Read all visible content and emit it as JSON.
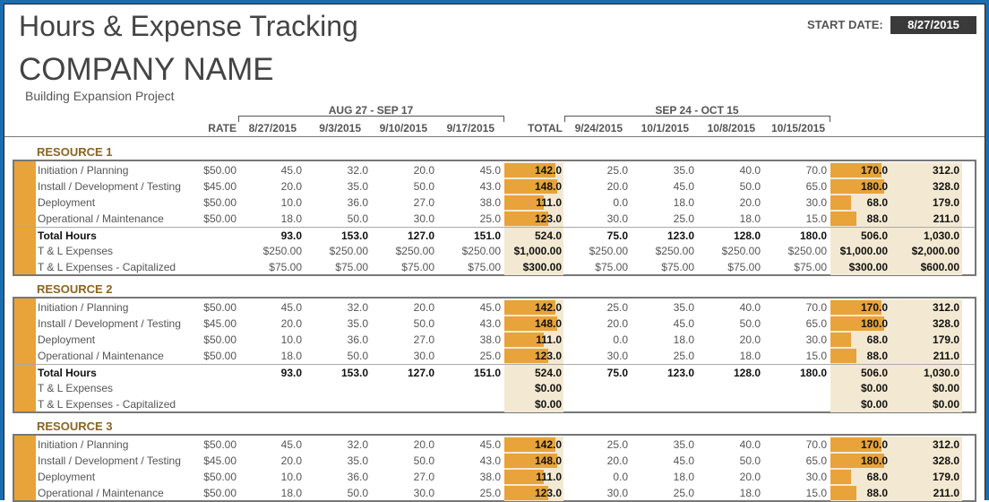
{
  "title": "Hours & Expense Tracking",
  "company": "COMPANY NAME",
  "project": "Building Expansion Project",
  "start_date": {
    "label": "START DATE:",
    "value": "8/27/2015"
  },
  "periods": [
    "AUG 27 - SEP 17",
    "SEP 24 - OCT 15"
  ],
  "headers": {
    "rate": "RATE",
    "weeks1": [
      "8/27/2015",
      "9/3/2015",
      "9/10/2015",
      "9/17/2015"
    ],
    "total": "TOTAL",
    "weeks2": [
      "9/24/2015",
      "10/1/2015",
      "10/8/2015",
      "10/15/2015"
    ]
  },
  "colors": {
    "accent": "#e8a33a",
    "shade": "#f3e9d2",
    "frame": "#1b6db0"
  },
  "resources": [
    {
      "name": "RESOURCE 1",
      "rows": [
        {
          "label": "Initiation / Planning",
          "rate": "$50.00",
          "w1": [
            "45.0",
            "32.0",
            "20.0",
            "45.0"
          ],
          "t1": "142.0",
          "w2": [
            "25.0",
            "35.0",
            "40.0",
            "70.0"
          ],
          "t2": "170.0",
          "grand": "312.0",
          "bar1": 142,
          "bar2": 170
        },
        {
          "label": "Install / Development / Testing",
          "rate": "$45.00",
          "w1": [
            "20.0",
            "35.0",
            "50.0",
            "43.0"
          ],
          "t1": "148.0",
          "w2": [
            "20.0",
            "45.0",
            "50.0",
            "65.0"
          ],
          "t2": "180.0",
          "grand": "328.0",
          "bar1": 148,
          "bar2": 180
        },
        {
          "label": "Deployment",
          "rate": "$50.00",
          "w1": [
            "10.0",
            "36.0",
            "27.0",
            "38.0"
          ],
          "t1": "111.0",
          "w2": [
            "0.0",
            "18.0",
            "20.0",
            "30.0"
          ],
          "t2": "68.0",
          "grand": "179.0",
          "bar1": 111,
          "bar2": 68
        },
        {
          "label": "Operational / Maintenance",
          "rate": "$50.00",
          "w1": [
            "18.0",
            "50.0",
            "30.0",
            "25.0"
          ],
          "t1": "123.0",
          "w2": [
            "30.0",
            "25.0",
            "18.0",
            "15.0"
          ],
          "t2": "88.0",
          "grand": "211.0",
          "bar1": 123,
          "bar2": 88
        },
        {
          "kind": "total",
          "label": "Total Hours",
          "rate": "",
          "w1": [
            "93.0",
            "153.0",
            "127.0",
            "151.0"
          ],
          "t1": "524.0",
          "w2": [
            "75.0",
            "123.0",
            "128.0",
            "180.0"
          ],
          "t2": "506.0",
          "grand": "1,030.0"
        },
        {
          "kind": "exp",
          "label": "T & L Expenses",
          "rate": "",
          "w1": [
            "$250.00",
            "$250.00",
            "$250.00",
            "$250.00"
          ],
          "t1": "$1,000.00",
          "w2": [
            "$250.00",
            "$250.00",
            "$250.00",
            "$250.00"
          ],
          "t2": "$1,000.00",
          "grand": "$2,000.00"
        },
        {
          "kind": "exp",
          "label": "T & L Expenses - Capitalized",
          "rate": "",
          "w1": [
            "$75.00",
            "$75.00",
            "$75.00",
            "$75.00"
          ],
          "t1": "$300.00",
          "w2": [
            "$75.00",
            "$75.00",
            "$75.00",
            "$75.00"
          ],
          "t2": "$300.00",
          "grand": "$600.00"
        }
      ]
    },
    {
      "name": "RESOURCE 2",
      "rows": [
        {
          "label": "Initiation / Planning",
          "rate": "$50.00",
          "w1": [
            "45.0",
            "32.0",
            "20.0",
            "45.0"
          ],
          "t1": "142.0",
          "w2": [
            "25.0",
            "35.0",
            "40.0",
            "70.0"
          ],
          "t2": "170.0",
          "grand": "312.0",
          "bar1": 142,
          "bar2": 170
        },
        {
          "label": "Install / Development / Testing",
          "rate": "$45.00",
          "w1": [
            "20.0",
            "35.0",
            "50.0",
            "43.0"
          ],
          "t1": "148.0",
          "w2": [
            "20.0",
            "45.0",
            "50.0",
            "65.0"
          ],
          "t2": "180.0",
          "grand": "328.0",
          "bar1": 148,
          "bar2": 180
        },
        {
          "label": "Deployment",
          "rate": "$50.00",
          "w1": [
            "10.0",
            "36.0",
            "27.0",
            "38.0"
          ],
          "t1": "111.0",
          "w2": [
            "0.0",
            "18.0",
            "20.0",
            "30.0"
          ],
          "t2": "68.0",
          "grand": "179.0",
          "bar1": 111,
          "bar2": 68
        },
        {
          "label": "Operational / Maintenance",
          "rate": "$50.00",
          "w1": [
            "18.0",
            "50.0",
            "30.0",
            "25.0"
          ],
          "t1": "123.0",
          "w2": [
            "30.0",
            "25.0",
            "18.0",
            "15.0"
          ],
          "t2": "88.0",
          "grand": "211.0",
          "bar1": 123,
          "bar2": 88
        },
        {
          "kind": "total",
          "label": "Total Hours",
          "rate": "",
          "w1": [
            "93.0",
            "153.0",
            "127.0",
            "151.0"
          ],
          "t1": "524.0",
          "w2": [
            "75.0",
            "123.0",
            "128.0",
            "180.0"
          ],
          "t2": "506.0",
          "grand": "1,030.0"
        },
        {
          "kind": "exp",
          "label": "T & L Expenses",
          "rate": "",
          "w1": [
            "",
            "",
            "",
            ""
          ],
          "t1": "$0.00",
          "w2": [
            "",
            "",
            "",
            ""
          ],
          "t2": "$0.00",
          "grand": "$0.00"
        },
        {
          "kind": "exp",
          "label": "T & L Expenses - Capitalized",
          "rate": "",
          "w1": [
            "",
            "",
            "",
            ""
          ],
          "t1": "$0.00",
          "w2": [
            "",
            "",
            "",
            ""
          ],
          "t2": "$0.00",
          "grand": "$0.00"
        }
      ]
    },
    {
      "name": "RESOURCE 3",
      "rows": [
        {
          "label": "Initiation / Planning",
          "rate": "$50.00",
          "w1": [
            "45.0",
            "32.0",
            "20.0",
            "45.0"
          ],
          "t1": "142.0",
          "w2": [
            "25.0",
            "35.0",
            "40.0",
            "70.0"
          ],
          "t2": "170.0",
          "grand": "312.0",
          "bar1": 142,
          "bar2": 170
        },
        {
          "label": "Install / Development / Testing",
          "rate": "$45.00",
          "w1": [
            "20.0",
            "35.0",
            "50.0",
            "43.0"
          ],
          "t1": "148.0",
          "w2": [
            "20.0",
            "45.0",
            "50.0",
            "65.0"
          ],
          "t2": "180.0",
          "grand": "328.0",
          "bar1": 148,
          "bar2": 180
        },
        {
          "label": "Deployment",
          "rate": "$50.00",
          "w1": [
            "10.0",
            "36.0",
            "27.0",
            "38.0"
          ],
          "t1": "111.0",
          "w2": [
            "0.0",
            "18.0",
            "20.0",
            "30.0"
          ],
          "t2": "68.0",
          "grand": "179.0",
          "bar1": 111,
          "bar2": 68
        },
        {
          "label": "Operational / Maintenance",
          "rate": "$50.00",
          "w1": [
            "18.0",
            "50.0",
            "30.0",
            "25.0"
          ],
          "t1": "123.0",
          "w2": [
            "30.0",
            "25.0",
            "18.0",
            "15.0"
          ],
          "t2": "88.0",
          "grand": "211.0",
          "bar1": 123,
          "bar2": 88
        }
      ]
    }
  ]
}
